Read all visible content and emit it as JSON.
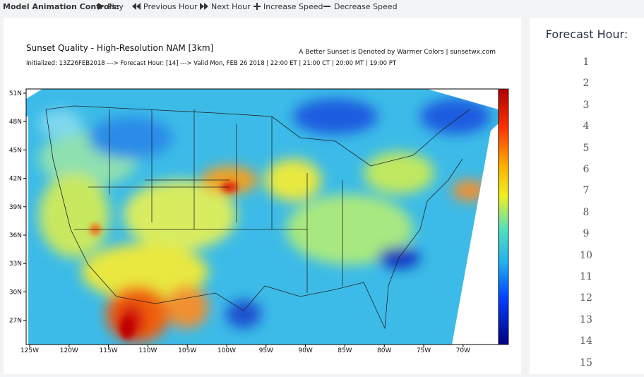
{
  "toolbar": {
    "label": "Model Animation Controls:",
    "buttons": [
      "Play",
      "Previous Hour",
      "Next Hour",
      "Increase Speed",
      "Decrease Speed"
    ]
  },
  "map": {
    "title": "Sunset Quality - High-Resolution NAM [3km]",
    "note": "A Better Sunset is Denoted by Warmer Colors | sunsetwx.com",
    "subtitle": "Initialized: 13Z26FEB2018 ---> Forecast Hour: [14] ---> Valid Mon, FEB 26 2018 | 22:00 ET | 21:00 CT | 20:00 MT | 19:00 PT",
    "lat_labels": [
      "51N",
      "48N",
      "45N",
      "42N",
      "39N",
      "36N",
      "33N",
      "30N",
      "27N"
    ],
    "lon_labels": [
      "125W",
      "120W",
      "115W",
      "110W",
      "105W",
      "100W",
      "95W",
      "90W",
      "85W",
      "80W",
      "75W",
      "70W"
    ]
  },
  "sidebar": {
    "title": "Forecast Hour:",
    "hours": [
      "1",
      "2",
      "3",
      "4",
      "5",
      "6",
      "7",
      "8",
      "9",
      "10",
      "11",
      "12",
      "13",
      "14",
      "15"
    ]
  }
}
